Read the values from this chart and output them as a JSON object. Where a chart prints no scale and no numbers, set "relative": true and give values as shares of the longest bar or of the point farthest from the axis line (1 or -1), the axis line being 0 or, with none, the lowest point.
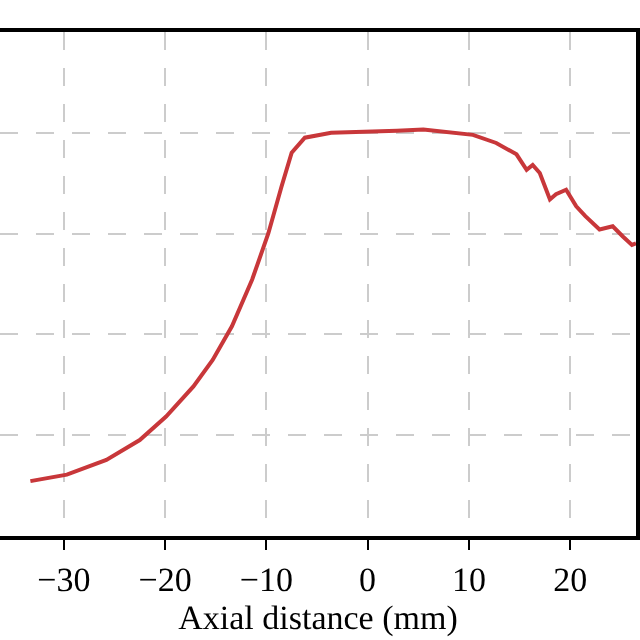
{
  "chart_data": {
    "type": "line",
    "xlabel": "Axial distance (mm)",
    "relative": true,
    "grid": true,
    "xlim": [
      -36.3,
      26.5
    ],
    "xticks": [
      {
        "value": -30,
        "label": "−30"
      },
      {
        "value": -20,
        "label": "−20"
      },
      {
        "value": -10,
        "label": "−10"
      },
      0,
      10,
      20
    ],
    "tick_labels": "x",
    "marker": "none",
    "line_style": "solid",
    "series": [
      {
        "color": "#c8373a",
        "x": [
          -33.3,
          -29.7,
          -25.8,
          -22.5,
          -19.9,
          -17.2,
          -15.3,
          -13.4,
          -11.4,
          -9.8,
          -8.5,
          -7.5,
          -6.2,
          -3.6,
          2.9,
          5.5,
          10.4,
          12.7,
          14.7,
          15.7,
          16.3,
          17.0,
          18.0,
          18.6,
          19.6,
          20.6,
          21.5,
          22.9,
          24.2,
          25.2,
          26.1,
          26.5
        ],
        "values": [
          0.135,
          0.151,
          0.187,
          0.236,
          0.294,
          0.368,
          0.433,
          0.516,
          0.631,
          0.745,
          0.86,
          0.943,
          0.98,
          0.992,
          0.997,
          1.0,
          0.987,
          0.967,
          0.939,
          0.901,
          0.913,
          0.893,
          0.828,
          0.841,
          0.852,
          0.811,
          0.787,
          0.754,
          0.762,
          0.737,
          0.716,
          0.72
        ]
      }
    ]
  }
}
